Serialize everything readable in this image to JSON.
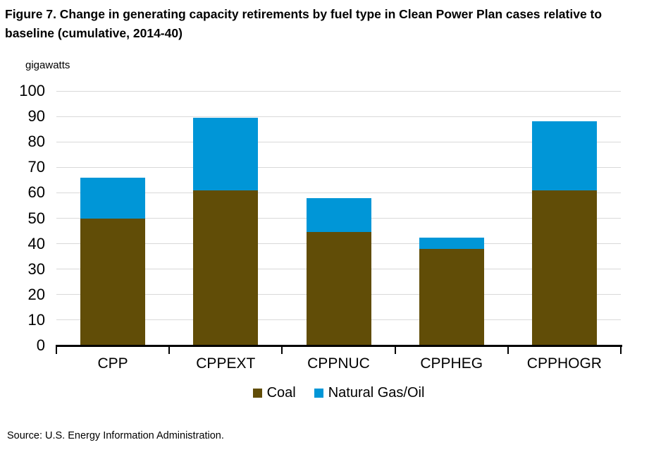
{
  "header": {
    "title_line1": "Figure 7. Change in generating capacity retirements by fuel type in Clean Power Plan cases relative to",
    "title_line2": "baseline (cumulative, 2014-40)"
  },
  "unit_label": "gigawatts",
  "source": "Source: U.S. Energy Information Administration.",
  "chart_data": {
    "type": "bar",
    "stacked": true,
    "title": "Figure 7. Change in generating capacity retirements by fuel type in Clean Power Plan cases relative to baseline (cumulative, 2014-40)",
    "xlabel": "",
    "ylabel": "gigawatts",
    "categories": [
      "CPP",
      "CPPEXT",
      "CPPNUC",
      "CPPHEG",
      "CPPHOGR"
    ],
    "series": [
      {
        "name": "Coal",
        "color": "#614d07",
        "values": [
          50,
          61,
          44.5,
          38,
          61
        ]
      },
      {
        "name": "Natural Gas/Oil",
        "color": "#0096d7",
        "values": [
          16,
          28.5,
          13.5,
          4.5,
          27
        ]
      }
    ],
    "totals": [
      66,
      89.5,
      58,
      42.5,
      88
    ],
    "ylim": [
      0,
      100
    ],
    "ytick_step": 10,
    "grid": true,
    "gridline_color": "#d9d9d9",
    "axis_color": "#000000",
    "legend_position": "bottom"
  }
}
